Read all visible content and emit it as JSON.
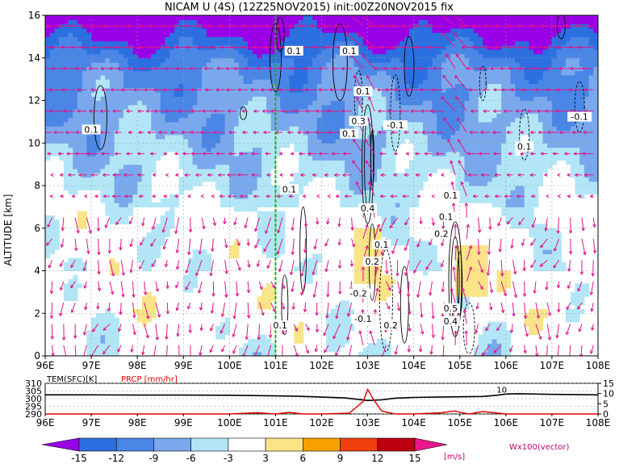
{
  "chart_data": [
    {
      "type": "heatmap",
      "title": "NICAM U (4S) (12Z25NOV2015) init:00Z20NOV2015 fix",
      "ylabel": "ALTITUDE [km]",
      "xlim": [
        96,
        108
      ],
      "ylim": [
        0,
        16
      ],
      "x_ticks": [
        "96E",
        "97E",
        "98E",
        "99E",
        "100E",
        "101E",
        "102E",
        "103E",
        "104E",
        "105E",
        "106E",
        "107E",
        "108E"
      ],
      "y_ticks": [
        "0",
        "2",
        "4",
        "6",
        "8",
        "10",
        "12",
        "14",
        "16"
      ],
      "grid": true,
      "marker_line_x": 101,
      "contour_labels": [
        {
          "x": 97.0,
          "y": 10.6,
          "text": "0.1"
        },
        {
          "x": 101.4,
          "y": 14.3,
          "text": "0.1"
        },
        {
          "x": 102.6,
          "y": 14.3,
          "text": "0.1"
        },
        {
          "x": 102.9,
          "y": 12.4,
          "text": "0.1"
        },
        {
          "x": 102.8,
          "y": 11.0,
          "text": "0.3"
        },
        {
          "x": 102.6,
          "y": 10.4,
          "text": "0.1"
        },
        {
          "x": 103.6,
          "y": 10.8,
          "text": "-0.1"
        },
        {
          "x": 106.4,
          "y": 9.8,
          "text": "0.1"
        },
        {
          "x": 107.6,
          "y": 11.2,
          "text": "-0.1"
        },
        {
          "x": 101.3,
          "y": 7.8,
          "text": "0.1"
        },
        {
          "x": 103.0,
          "y": 6.9,
          "text": "0.4"
        },
        {
          "x": 103.3,
          "y": 5.2,
          "text": "0.1"
        },
        {
          "x": 103.1,
          "y": 4.4,
          "text": "0.2"
        },
        {
          "x": 102.8,
          "y": 2.9,
          "text": "-0.2"
        },
        {
          "x": 102.9,
          "y": 1.7,
          "text": "-0.1"
        },
        {
          "x": 103.5,
          "y": 1.4,
          "text": "0.2"
        },
        {
          "x": 101.1,
          "y": 1.4,
          "text": "0.1"
        },
        {
          "x": 104.8,
          "y": 7.5,
          "text": "0.1"
        },
        {
          "x": 104.7,
          "y": 6.5,
          "text": "0.1"
        },
        {
          "x": 104.6,
          "y": 5.7,
          "text": "0.2"
        },
        {
          "x": 104.8,
          "y": 2.2,
          "text": "0.5"
        },
        {
          "x": 104.8,
          "y": 1.6,
          "text": "0.4"
        }
      ]
    },
    {
      "type": "line",
      "series": [
        {
          "name": "TEM(SFC)[K]",
          "color": "#000000",
          "x": [
            96,
            97,
            98,
            99,
            100,
            100.5,
            101,
            101.5,
            102,
            102.5,
            102.8,
            103,
            103.3,
            103.6,
            104,
            104.5,
            105,
            105.5,
            105.8,
            106,
            106.3,
            107,
            108
          ],
          "values": [
            302.5,
            302.5,
            302.3,
            302.3,
            302.2,
            302.0,
            301.8,
            301.5,
            301.0,
            300.5,
            299.5,
            298.8,
            299.2,
            300.3,
            300.8,
            301.0,
            301.2,
            301.4,
            302.2,
            303.0,
            303.2,
            302.8,
            302.5
          ]
        },
        {
          "name": "PRCP [mm/hr]",
          "color": "#e00000",
          "x": [
            96,
            100,
            100.6,
            101,
            101.3,
            101.6,
            102,
            102.6,
            102.9,
            103,
            103.1,
            103.3,
            103.6,
            104,
            104.6,
            104.9,
            105,
            105.2,
            105.5,
            106,
            108
          ],
          "values": [
            0,
            0,
            0.6,
            0,
            0.8,
            0,
            0,
            0.4,
            6,
            12,
            8,
            1.5,
            0,
            0,
            0.6,
            1.5,
            0.8,
            0,
            1.2,
            0,
            0
          ]
        }
      ],
      "y_ticks_left": [
        "290",
        "295",
        "300",
        "305",
        "310"
      ],
      "y_ticks_right": [
        "0",
        "5",
        "10",
        "15"
      ],
      "annotation": {
        "x": 105.8,
        "y": 304,
        "text": "10"
      }
    },
    {
      "type": "legend",
      "colorbar_ticks": [
        "-15",
        "-12",
        "-9",
        "-6",
        "-3",
        "3",
        "6",
        "9",
        "12",
        "15"
      ],
      "units": "[m/s]",
      "vector_label": "Wx100(vector)",
      "colors": [
        "#9a00e6",
        "#2c6fe0",
        "#4a86e6",
        "#7aa8ec",
        "#b2e6f6",
        "#ffffff",
        "#fbe388",
        "#f8a000",
        "#f04010",
        "#bb0010",
        "#e8168c"
      ]
    }
  ]
}
